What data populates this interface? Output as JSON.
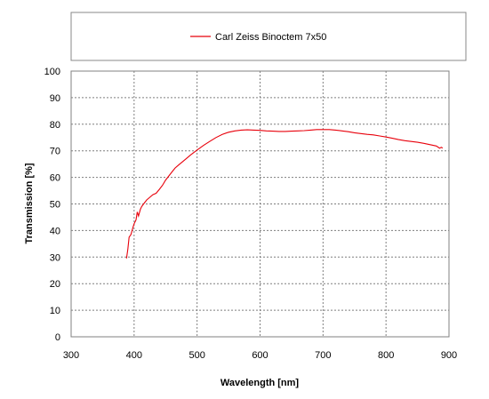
{
  "chart_data": {
    "type": "line",
    "xlabel": "Wavelength [nm]",
    "ylabel": "Transmission [%]",
    "xlim": [
      300,
      900
    ],
    "ylim": [
      0,
      100
    ],
    "xticks": [
      300,
      400,
      500,
      600,
      700,
      800,
      900
    ],
    "yticks": [
      0,
      10,
      20,
      30,
      40,
      50,
      60,
      70,
      80,
      90,
      100
    ],
    "grid": true,
    "legend_position": "top",
    "series": [
      {
        "name": "Carl Zeiss Binoctem 7x50",
        "color": "#e8000b",
        "x": [
          388,
          390,
          392,
          395,
          398,
          400,
          403,
          405,
          407,
          410,
          412,
          415,
          420,
          425,
          430,
          435,
          440,
          445,
          450,
          455,
          460,
          465,
          470,
          480,
          490,
          500,
          510,
          520,
          530,
          540,
          550,
          560,
          570,
          580,
          590,
          600,
          610,
          620,
          630,
          640,
          650,
          660,
          670,
          680,
          690,
          700,
          710,
          720,
          730,
          740,
          750,
          760,
          770,
          780,
          790,
          800,
          810,
          820,
          830,
          840,
          850,
          860,
          870,
          880,
          885,
          888,
          890
        ],
        "y": [
          29.5,
          33,
          37.5,
          38.5,
          41,
          42.5,
          44,
          47,
          45.5,
          48,
          49,
          50,
          51.5,
          52.5,
          53.5,
          54,
          55.5,
          57,
          59,
          60.5,
          62,
          63.5,
          64.5,
          66.5,
          68.5,
          70.3,
          72,
          73.5,
          75,
          76.2,
          77,
          77.5,
          77.8,
          77.9,
          77.8,
          77.7,
          77.5,
          77.4,
          77.3,
          77.3,
          77.4,
          77.5,
          77.6,
          77.8,
          78,
          78,
          78,
          77.8,
          77.5,
          77.2,
          76.8,
          76.5,
          76.2,
          76,
          75.6,
          75.2,
          74.7,
          74.2,
          73.8,
          73.5,
          73.2,
          72.8,
          72.3,
          71.8,
          71,
          71.3,
          71
        ]
      }
    ]
  }
}
